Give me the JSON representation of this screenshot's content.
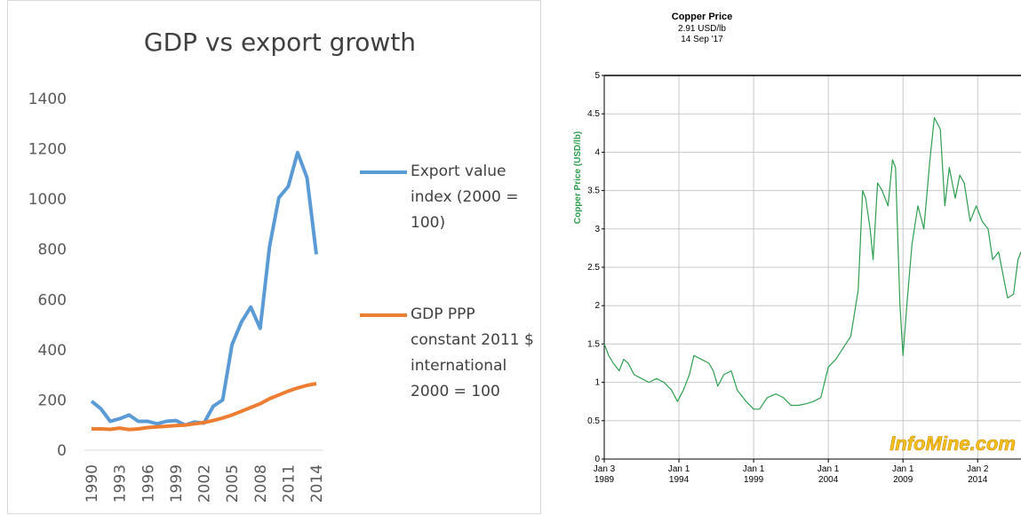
{
  "chart_data": [
    {
      "type": "line",
      "title": "GDP vs export growth",
      "x": [
        1990,
        1991,
        1992,
        1993,
        1994,
        1995,
        1996,
        1997,
        1998,
        1999,
        2000,
        2001,
        2002,
        2003,
        2004,
        2005,
        2006,
        2007,
        2008,
        2009,
        2010,
        2011,
        2012,
        2013,
        2014
      ],
      "xlim": [
        1990,
        2014
      ],
      "xticks": [
        1990,
        1993,
        1996,
        1999,
        2002,
        2005,
        2008,
        2011,
        2014
      ],
      "ylim": [
        0,
        1400
      ],
      "yticks": [
        0,
        200,
        400,
        600,
        800,
        1000,
        1200,
        1400
      ],
      "grid": false,
      "legend": "right",
      "series": [
        {
          "name": "Export value index (2000 = 100)",
          "color": "#5b9bd5",
          "values": [
            195,
            165,
            115,
            125,
            140,
            115,
            115,
            105,
            115,
            118,
            100,
            112,
            108,
            175,
            200,
            420,
            510,
            570,
            485,
            810,
            1005,
            1050,
            1185,
            1085,
            780
          ]
        },
        {
          "name": "GDP PPP constant 2011 $ international 2000 = 100",
          "color": "#ed7d31",
          "values": [
            85,
            85,
            83,
            88,
            82,
            85,
            90,
            93,
            95,
            98,
            100,
            105,
            110,
            118,
            128,
            140,
            155,
            170,
            185,
            205,
            220,
            235,
            248,
            258,
            265
          ]
        }
      ]
    },
    {
      "type": "line",
      "title": "Copper Price",
      "subtitle": "2.91 USD/lb",
      "annotation": "14 Sep '17",
      "ylabel": "Copper Price (USD/lb)",
      "watermark": "InfoMine.com",
      "color": "#2e9e4f",
      "grid": true,
      "x": [
        1989.0,
        1989.3,
        1989.6,
        1990.0,
        1990.3,
        1990.6,
        1991.0,
        1991.5,
        1992.0,
        1992.5,
        1993.0,
        1993.5,
        1993.9,
        1994.3,
        1994.7,
        1995.0,
        1995.5,
        1996.0,
        1996.3,
        1996.6,
        1997.0,
        1997.5,
        1997.9,
        1998.5,
        1999.0,
        1999.4,
        1999.9,
        2000.5,
        2001.0,
        2001.5,
        2002.0,
        2002.5,
        2003.0,
        2003.5,
        2004.0,
        2004.5,
        2005.0,
        2005.5,
        2006.0,
        2006.3,
        2006.5,
        2006.8,
        2007.0,
        2007.3,
        2007.6,
        2008.0,
        2008.3,
        2008.5,
        2008.8,
        2009.0,
        2009.3,
        2009.6,
        2010.0,
        2010.4,
        2010.8,
        2011.1,
        2011.5,
        2011.8,
        2012.1,
        2012.5,
        2012.8,
        2013.1,
        2013.5,
        2013.9,
        2014.3,
        2014.7,
        2015.0,
        2015.4,
        2015.8,
        2016.0,
        2016.4,
        2016.7,
        2016.9
      ],
      "values": [
        1.5,
        1.35,
        1.25,
        1.15,
        1.3,
        1.25,
        1.1,
        1.05,
        1.0,
        1.05,
        1.0,
        0.9,
        0.75,
        0.9,
        1.1,
        1.35,
        1.3,
        1.25,
        1.15,
        0.95,
        1.1,
        1.15,
        0.9,
        0.75,
        0.65,
        0.65,
        0.8,
        0.85,
        0.8,
        0.7,
        0.7,
        0.72,
        0.75,
        0.8,
        1.2,
        1.3,
        1.45,
        1.6,
        2.2,
        3.5,
        3.4,
        3.0,
        2.6,
        3.6,
        3.5,
        3.3,
        3.9,
        3.8,
        2.0,
        1.35,
        2.1,
        2.8,
        3.3,
        3.0,
        3.9,
        4.45,
        4.3,
        3.3,
        3.8,
        3.4,
        3.7,
        3.6,
        3.1,
        3.3,
        3.1,
        3.0,
        2.6,
        2.7,
        2.3,
        2.1,
        2.15,
        2.6,
        2.7
      ],
      "xlim": [
        1989,
        2016.9
      ],
      "xticks": [
        {
          "value": 1989,
          "label": "Jan 3 1989"
        },
        {
          "value": 1994,
          "label": "Jan 1 1994"
        },
        {
          "value": 1999,
          "label": "Jan 1 1999"
        },
        {
          "value": 2004,
          "label": "Jan 1 2004"
        },
        {
          "value": 2009,
          "label": "Jan 1 2009"
        },
        {
          "value": 2014,
          "label": "Jan 2 2014"
        }
      ],
      "ylim": [
        0,
        5
      ],
      "yticks": [
        0,
        0.5,
        1,
        1.5,
        2,
        2.5,
        3,
        3.5,
        4,
        4.5,
        5
      ]
    }
  ]
}
